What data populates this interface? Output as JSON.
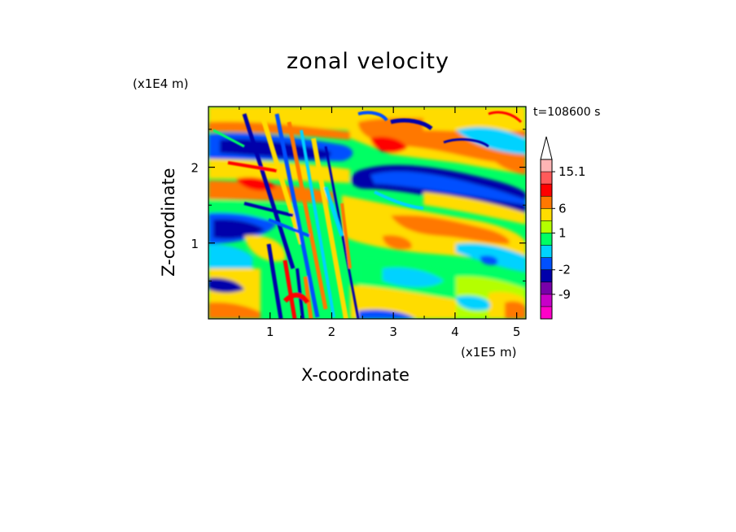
{
  "chart_data": {
    "type": "heatmap",
    "title": "zonal velocity",
    "xlabel": "X-coordinate",
    "ylabel": "Z-coordinate",
    "x_unit_label": "(x1E5 m)",
    "y_unit_label": "(x1E4 m)",
    "time_label": "t=108600 s",
    "xlim": [
      0,
      5.15
    ],
    "ylim": [
      0,
      2.8
    ],
    "x_ticks": [
      1,
      2,
      3,
      4,
      5
    ],
    "x_tick_labels": [
      "1",
      "2",
      "3",
      "4",
      "5"
    ],
    "y_ticks": [
      1,
      2
    ],
    "y_tick_labels": [
      "1",
      "2"
    ],
    "colorbar": {
      "levels": [
        -15.1,
        -12,
        -9,
        -6,
        -2,
        -1,
        0,
        1,
        2,
        6,
        9,
        12,
        15.1
      ],
      "labeled_values": [
        "15.1",
        "6",
        "1",
        "-2",
        "-9"
      ],
      "colors": [
        "#ff00c8",
        "#c800c8",
        "#7800aa",
        "#0000aa",
        "#0050ff",
        "#00d2ff",
        "#00ff64",
        "#b4ff00",
        "#ffdc00",
        "#ff7800",
        "#ff0000",
        "#ff5a5a",
        "#ffb4b4"
      ],
      "extend_max": true
    }
  }
}
